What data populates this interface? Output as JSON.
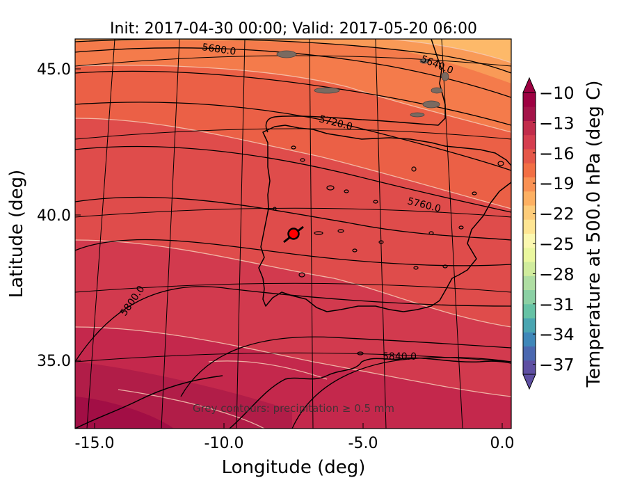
{
  "title": "Init: 2017-04-30 00:00; Valid: 2017-05-20 06:00",
  "xlabel": "Longitude (deg)",
  "ylabel": "Latitude (deg)",
  "x_ticks": [
    "-15.0",
    "-10.0",
    "-5.0",
    "0.0"
  ],
  "y_ticks": [
    "45.0",
    "40.0",
    "35.0"
  ],
  "annotation": "Grey contours: precipitation ≥ 0.5 mm",
  "colorbar": {
    "label": "Temperature at 500.0 hPa (deg C)",
    "ticks": [
      "−10",
      "−13",
      "−16",
      "−19",
      "−22",
      "−25",
      "−28",
      "−31",
      "−34",
      "−37"
    ],
    "colors": [
      "#5e4fa2",
      "#4b68b0",
      "#3f87b9",
      "#4aa5b1",
      "#66c2a5",
      "#8bd0a4",
      "#afdea3",
      "#d0ec9d",
      "#eaf79f",
      "#fbf8b0",
      "#fee593",
      "#fdcc7a",
      "#fdb062",
      "#f99153",
      "#f26f44",
      "#e55748",
      "#d53e4f",
      "#c12c4b",
      "#a41449",
      "#9e0142"
    ]
  },
  "contour_labels": [
    "5680.0",
    "5640.0",
    "5720.0",
    "5760.0",
    "5800.0",
    "5840.0"
  ],
  "marker": {
    "color": "#ff0000"
  },
  "chart_data": {
    "type": "map",
    "title": "Init: 2017-04-30 00:00; Valid: 2017-05-20 06:00",
    "xlabel": "Longitude (deg)",
    "ylabel": "Latitude (deg)",
    "xlim": [
      -16,
      0.3
    ],
    "ylim": [
      32.8,
      46.2
    ],
    "filled_field": "Temperature at 500.0 hPa (deg C)",
    "colorbar_range": [
      -38,
      -10
    ],
    "height_contours": [
      5640,
      5680,
      5720,
      5760,
      5800,
      5840
    ],
    "marker_location": {
      "lon": -7.5,
      "lat": 39.4
    }
  }
}
